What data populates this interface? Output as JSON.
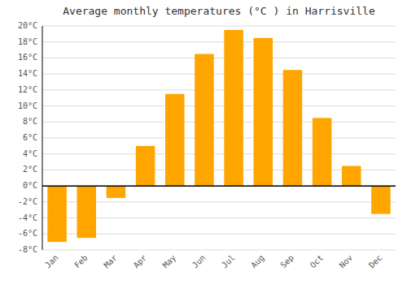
{
  "chart_data": {
    "type": "bar",
    "title": "Average monthly temperatures (°C ) in Harrisville",
    "categories": [
      "Jan",
      "Feb",
      "Mar",
      "Apr",
      "May",
      "Jun",
      "Jul",
      "Aug",
      "Sep",
      "Oct",
      "Nov",
      "Dec"
    ],
    "values": [
      -7,
      -6.5,
      -1.5,
      5,
      11.5,
      16.5,
      19.5,
      18.5,
      14.5,
      8.5,
      2.5,
      -3.5
    ],
    "color": "#FFA500",
    "ylim": [
      -8,
      20
    ],
    "yticks": [
      {
        "value": -8,
        "label": "-8°C"
      },
      {
        "value": -6,
        "label": "-6°C"
      },
      {
        "value": -4,
        "label": "-4°C"
      },
      {
        "value": -2,
        "label": "-2°C"
      },
      {
        "value": 0,
        "label": "0°C"
      },
      {
        "value": 2,
        "label": "2°C"
      },
      {
        "value": 4,
        "label": "4°C"
      },
      {
        "value": 6,
        "label": "6°C"
      },
      {
        "value": 8,
        "label": "8°C"
      },
      {
        "value": 10,
        "label": "10°C"
      },
      {
        "value": 12,
        "label": "12°C"
      },
      {
        "value": 14,
        "label": "14°C"
      },
      {
        "value": 16,
        "label": "16°C"
      },
      {
        "value": 18,
        "label": "18°C"
      },
      {
        "value": 20,
        "label": "20°C"
      }
    ],
    "grid": true
  }
}
